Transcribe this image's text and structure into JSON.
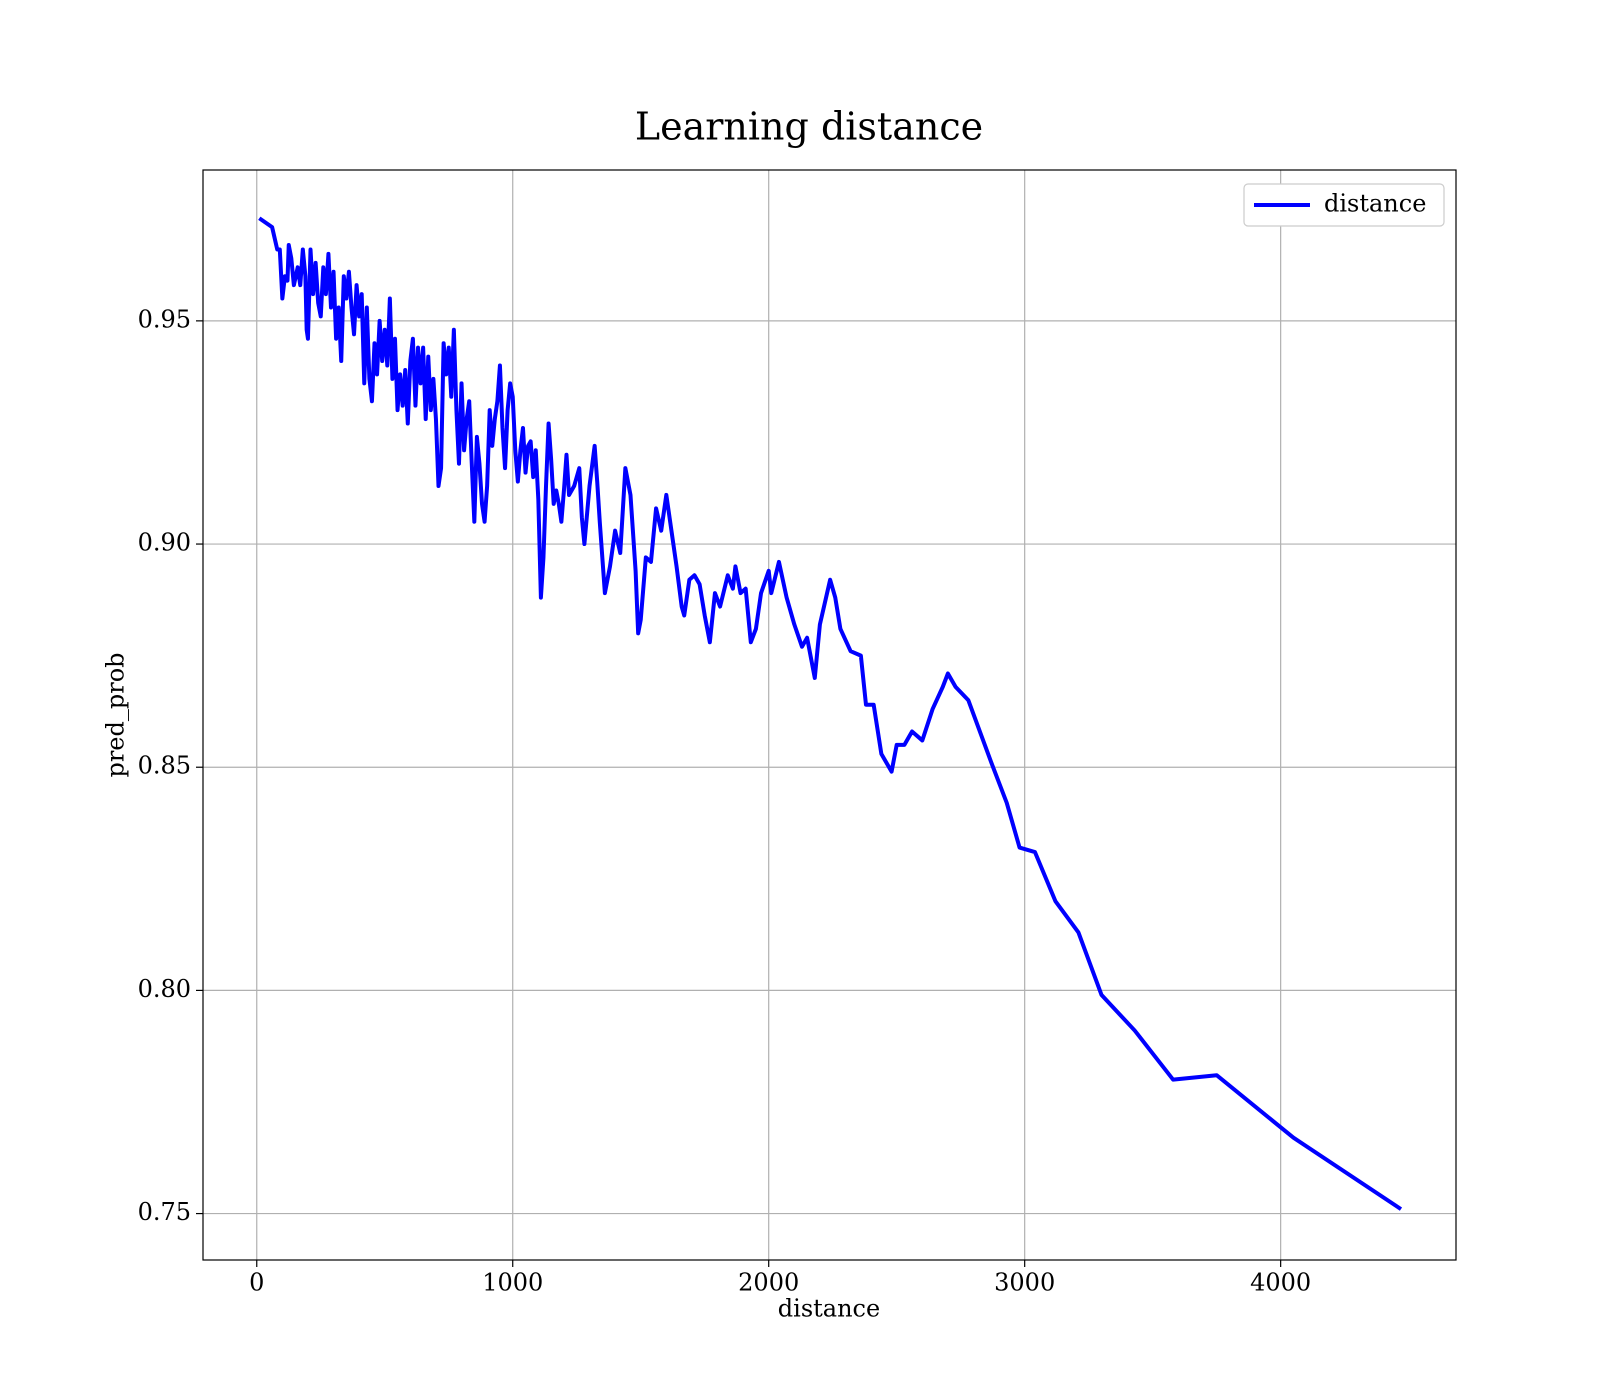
{
  "chart_data": {
    "type": "line",
    "title": "Learning distance",
    "x_label": "distance",
    "y_label": "pred_prob",
    "x": [
      10,
      60,
      80,
      90,
      100,
      110,
      120,
      125,
      135,
      145,
      160,
      170,
      180,
      190,
      195,
      200,
      210,
      220,
      230,
      240,
      250,
      260,
      270,
      280,
      290,
      300,
      310,
      320,
      330,
      340,
      350,
      360,
      370,
      380,
      390,
      400,
      410,
      420,
      430,
      440,
      450,
      460,
      470,
      480,
      490,
      500,
      510,
      520,
      530,
      540,
      550,
      560,
      570,
      580,
      590,
      600,
      610,
      620,
      630,
      640,
      650,
      660,
      670,
      680,
      690,
      700,
      710,
      720,
      730,
      740,
      750,
      760,
      770,
      780,
      790,
      800,
      810,
      820,
      830,
      840,
      850,
      860,
      870,
      880,
      890,
      900,
      910,
      920,
      930,
      940,
      950,
      960,
      970,
      980,
      990,
      1000,
      1010,
      1020,
      1030,
      1040,
      1050,
      1060,
      1070,
      1080,
      1090,
      1100,
      1110,
      1120,
      1130,
      1140,
      1150,
      1160,
      1170,
      1180,
      1190,
      1200,
      1210,
      1220,
      1240,
      1260,
      1270,
      1280,
      1300,
      1320,
      1330,
      1340,
      1360,
      1380,
      1400,
      1420,
      1440,
      1460,
      1480,
      1490,
      1500,
      1520,
      1540,
      1560,
      1580,
      1600,
      1620,
      1640,
      1660,
      1670,
      1690,
      1710,
      1730,
      1750,
      1770,
      1790,
      1810,
      1840,
      1860,
      1870,
      1890,
      1910,
      1930,
      1950,
      1970,
      2000,
      2010,
      2040,
      2070,
      2100,
      2130,
      2150,
      2180,
      2200,
      2240,
      2260,
      2280,
      2320,
      2360,
      2380,
      2410,
      2440,
      2480,
      2500,
      2530,
      2560,
      2600,
      2640,
      2680,
      2700,
      2730,
      2780,
      2870,
      2930,
      2980,
      3040,
      3120,
      3210,
      3300,
      3430,
      3580,
      3750,
      4050,
      4470
    ],
    "series": [
      {
        "name": "distance",
        "color": "#0000ff",
        "values": [
          0.973,
          0.971,
          0.966,
          0.966,
          0.955,
          0.96,
          0.959,
          0.967,
          0.964,
          0.958,
          0.962,
          0.958,
          0.966,
          0.96,
          0.948,
          0.946,
          0.966,
          0.956,
          0.963,
          0.954,
          0.951,
          0.962,
          0.956,
          0.965,
          0.953,
          0.961,
          0.946,
          0.953,
          0.941,
          0.96,
          0.955,
          0.961,
          0.953,
          0.947,
          0.958,
          0.951,
          0.956,
          0.936,
          0.953,
          0.937,
          0.932,
          0.945,
          0.938,
          0.95,
          0.941,
          0.948,
          0.94,
          0.955,
          0.937,
          0.946,
          0.93,
          0.938,
          0.931,
          0.939,
          0.927,
          0.941,
          0.946,
          0.931,
          0.944,
          0.936,
          0.944,
          0.928,
          0.942,
          0.93,
          0.937,
          0.928,
          0.913,
          0.917,
          0.945,
          0.938,
          0.944,
          0.933,
          0.948,
          0.93,
          0.918,
          0.936,
          0.921,
          0.928,
          0.932,
          0.918,
          0.905,
          0.924,
          0.918,
          0.909,
          0.905,
          0.913,
          0.93,
          0.922,
          0.928,
          0.932,
          0.94,
          0.926,
          0.917,
          0.93,
          0.936,
          0.933,
          0.921,
          0.914,
          0.921,
          0.926,
          0.916,
          0.922,
          0.923,
          0.915,
          0.921,
          0.91,
          0.888,
          0.897,
          0.913,
          0.927,
          0.919,
          0.909,
          0.912,
          0.909,
          0.905,
          0.912,
          0.92,
          0.911,
          0.913,
          0.917,
          0.906,
          0.9,
          0.913,
          0.922,
          0.914,
          0.905,
          0.889,
          0.895,
          0.903,
          0.898,
          0.917,
          0.911,
          0.894,
          0.88,
          0.883,
          0.897,
          0.896,
          0.908,
          0.903,
          0.911,
          0.903,
          0.895,
          0.886,
          0.884,
          0.892,
          0.893,
          0.891,
          0.884,
          0.878,
          0.889,
          0.886,
          0.893,
          0.89,
          0.895,
          0.889,
          0.89,
          0.878,
          0.881,
          0.889,
          0.894,
          0.889,
          0.896,
          0.888,
          0.882,
          0.877,
          0.879,
          0.87,
          0.882,
          0.892,
          0.888,
          0.881,
          0.876,
          0.875,
          0.864,
          0.864,
          0.853,
          0.849,
          0.855,
          0.855,
          0.858,
          0.856,
          0.863,
          0.868,
          0.871,
          0.868,
          0.865,
          0.851,
          0.842,
          0.832,
          0.831,
          0.82,
          0.813,
          0.799,
          0.791,
          0.78,
          0.781,
          0.767,
          0.751
        ]
      }
    ],
    "xlim": [
      -210,
      4685
    ],
    "ylim": [
      0.7396,
      0.9838
    ],
    "xticks": [
      0,
      1000,
      2000,
      3000,
      4000
    ],
    "yticks": [
      0.75,
      {
        "value": 0.8,
        "label": "0.80"
      },
      0.85,
      {
        "value": 0.9,
        "label": "0.90"
      },
      0.95
    ],
    "grid": true,
    "legend": "upper right"
  }
}
